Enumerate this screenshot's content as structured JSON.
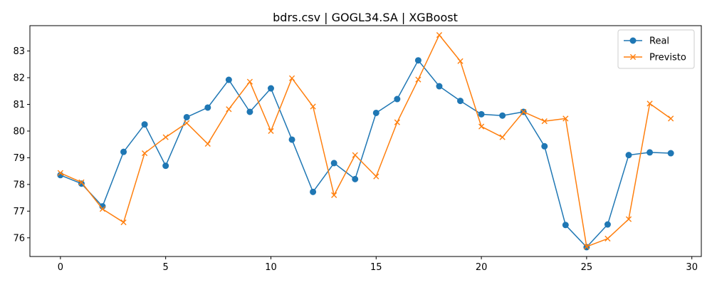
{
  "chart_data": {
    "type": "line",
    "title": "bdrs.csv | GOGL34.SA | XGBoost",
    "xlabel": "",
    "ylabel": "",
    "xlim": [
      -1.45,
      30.45
    ],
    "ylim": [
      75.3,
      83.95
    ],
    "xticks": [
      0,
      5,
      10,
      15,
      20,
      25,
      30
    ],
    "yticks": [
      76,
      77,
      78,
      79,
      80,
      81,
      82,
      83
    ],
    "grid": false,
    "legend_position": "top-right",
    "x": [
      0,
      1,
      2,
      3,
      4,
      5,
      6,
      7,
      8,
      9,
      10,
      11,
      12,
      13,
      14,
      15,
      16,
      17,
      18,
      19,
      20,
      21,
      22,
      23,
      24,
      25,
      26,
      27,
      28,
      29
    ],
    "series": [
      {
        "name": "Real",
        "color": "#1f77b4",
        "marker": "circle",
        "values": [
          78.35,
          78.03,
          77.18,
          79.22,
          80.25,
          78.7,
          80.52,
          80.88,
          81.92,
          80.72,
          81.6,
          79.68,
          77.72,
          78.8,
          78.2,
          80.68,
          81.2,
          82.65,
          81.68,
          81.13,
          80.63,
          80.58,
          80.72,
          79.43,
          76.48,
          75.65,
          76.5,
          79.1,
          79.2,
          79.17
        ]
      },
      {
        "name": "Previsto",
        "color": "#ff7f0e",
        "marker": "x",
        "values": [
          78.43,
          78.08,
          77.08,
          76.58,
          79.17,
          79.77,
          80.3,
          79.52,
          80.82,
          81.85,
          80.0,
          81.98,
          80.92,
          77.6,
          79.1,
          78.3,
          80.33,
          81.93,
          83.6,
          82.62,
          80.17,
          79.77,
          80.72,
          80.37,
          80.47,
          75.67,
          75.97,
          76.7,
          81.03,
          80.47
        ]
      }
    ]
  }
}
